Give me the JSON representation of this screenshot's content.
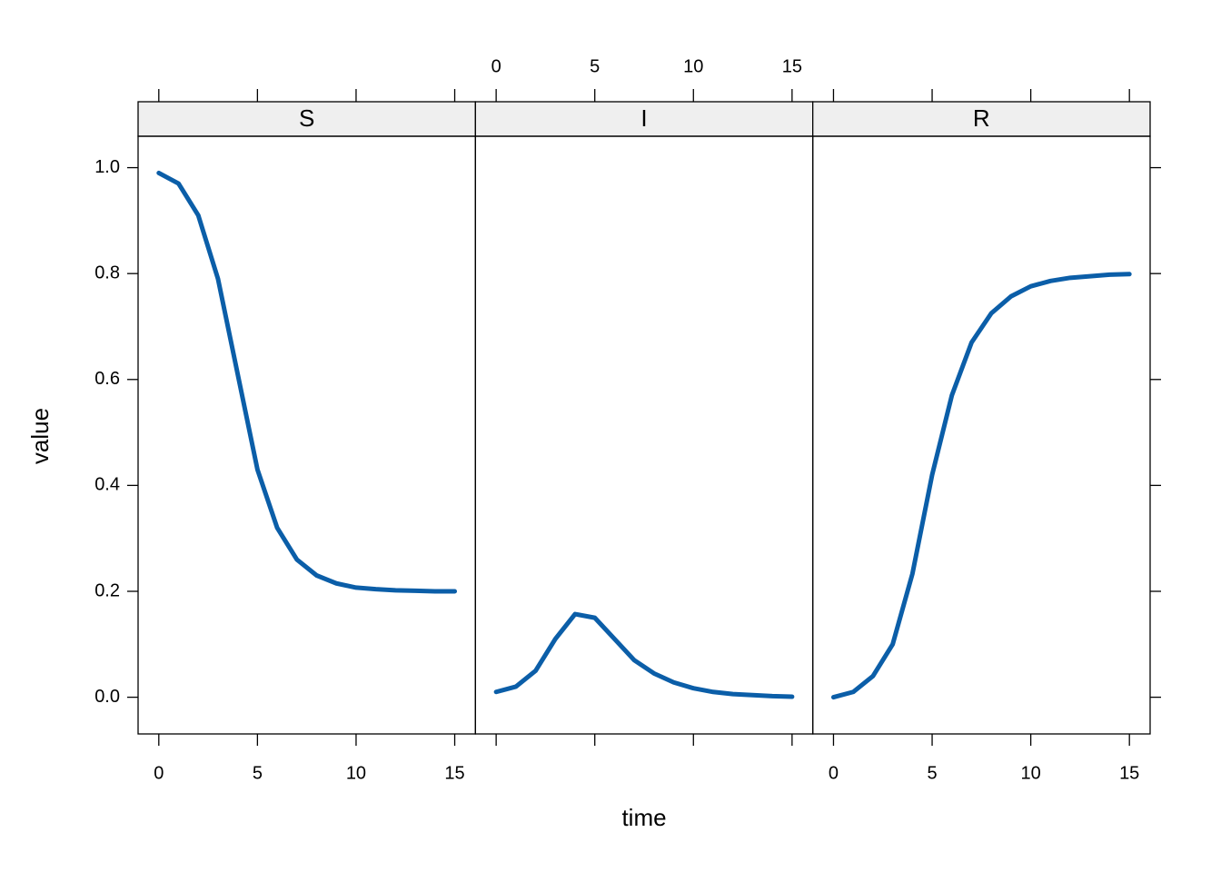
{
  "chart_data": {
    "type": "line",
    "xlabel": "time",
    "ylabel": "value",
    "x": [
      0,
      1,
      2,
      3,
      4,
      5,
      6,
      7,
      8,
      9,
      10,
      11,
      12,
      13,
      14,
      15
    ],
    "series": [
      {
        "name": "S",
        "color": "#0b5ea8",
        "values": [
          0.99,
          0.97,
          0.91,
          0.79,
          0.61,
          0.43,
          0.32,
          0.26,
          0.23,
          0.215,
          0.207,
          0.204,
          0.202,
          0.201,
          0.2,
          0.2
        ]
      },
      {
        "name": "I",
        "color": "#0b5ea8",
        "values": [
          0.01,
          0.02,
          0.05,
          0.11,
          0.157,
          0.15,
          0.11,
          0.07,
          0.045,
          0.028,
          0.017,
          0.01,
          0.006,
          0.004,
          0.002,
          0.001
        ]
      },
      {
        "name": "R",
        "color": "#0b5ea8",
        "values": [
          0,
          0.01,
          0.04,
          0.1,
          0.233,
          0.42,
          0.57,
          0.67,
          0.725,
          0.757,
          0.776,
          0.786,
          0.792,
          0.795,
          0.798,
          0.799
        ]
      }
    ],
    "xlim": [
      -1.05,
      16.05
    ],
    "xticks": [
      0,
      5,
      10,
      15
    ],
    "ylim": [
      -0.0693,
      1.0593
    ],
    "yticks": [
      {
        "value": 0,
        "label": "0.0"
      },
      {
        "value": 0.2,
        "label": "0.2"
      },
      {
        "value": 0.4,
        "label": "0.4"
      },
      {
        "value": 0.6,
        "label": "0.6"
      },
      {
        "value": 0.8,
        "label": "0.8"
      },
      {
        "value": 1,
        "label": "1.0"
      }
    ]
  }
}
